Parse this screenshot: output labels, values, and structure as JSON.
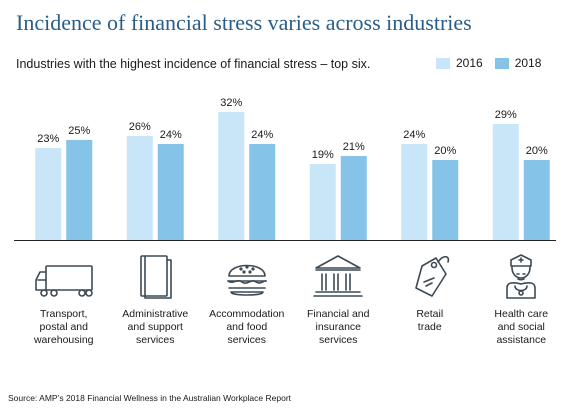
{
  "title": "Incidence of financial stress varies across industries",
  "subtitle": "Industries with the highest incidence of financial stress – top six.",
  "source": "Source: AMP’s 2018 Financial Wellness in the Australian Workplace Report",
  "colors": {
    "y2016": "#c9e6f8",
    "y2018": "#86c3e8",
    "title": "#2a5d8a",
    "icon": "#3d4a55"
  },
  "chart_data": {
    "type": "bar",
    "title": "Incidence of financial stress varies across industries",
    "subtitle": "Industries with the highest incidence of financial stress – top six.",
    "categories": [
      "Transport, postal and warehousing",
      "Administrative and support services",
      "Accommodation and food services",
      "Financial and insurance services",
      "Retail trade",
      "Health care and social assistance"
    ],
    "category_lines": [
      [
        "Transport,",
        "postal and",
        "warehousing"
      ],
      [
        "Administrative",
        "and support",
        "services"
      ],
      [
        "Accommodation",
        "and food",
        "services"
      ],
      [
        "Financial and",
        "insurance",
        "services"
      ],
      [
        "Retail",
        "trade"
      ],
      [
        "Health care",
        "and social",
        "assistance"
      ]
    ],
    "icons": [
      "truck-icon",
      "book-icon",
      "burger-icon",
      "bank-icon",
      "price-tag-icon",
      "nurse-icon"
    ],
    "series": [
      {
        "name": "2016",
        "values": [
          23,
          26,
          32,
          19,
          24,
          29
        ]
      },
      {
        "name": "2018",
        "values": [
          25,
          24,
          24,
          21,
          20,
          20
        ]
      }
    ],
    "value_format": "%",
    "ylim": [
      0,
      35
    ],
    "legend": "top-right",
    "grid": false
  }
}
